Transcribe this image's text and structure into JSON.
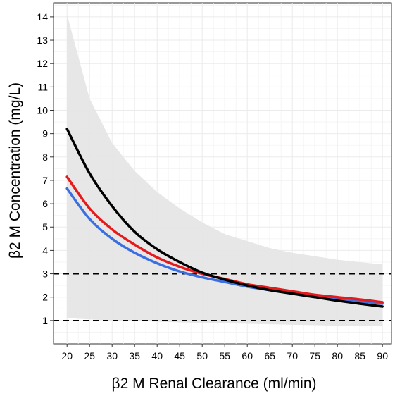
{
  "chart_data": {
    "type": "line",
    "xlabel": "β2 M Renal Clearance (ml/min)",
    "ylabel": "β2 M Concentration (mg/L)",
    "xlim": [
      17,
      92
    ],
    "ylim": [
      0,
      14.6
    ],
    "grid": true,
    "x_ticks": [
      20,
      25,
      30,
      35,
      40,
      45,
      50,
      55,
      60,
      65,
      70,
      75,
      80,
      85,
      90
    ],
    "y_ticks": [
      1,
      2,
      3,
      4,
      5,
      6,
      7,
      8,
      9,
      10,
      11,
      12,
      13,
      14
    ],
    "x": [
      20,
      25,
      30,
      35,
      40,
      45,
      50,
      55,
      60,
      65,
      70,
      75,
      80,
      85,
      90
    ],
    "band": {
      "lower": [
        1.1,
        1.05,
        1.0,
        0.98,
        0.95,
        0.92,
        0.9,
        0.88,
        0.86,
        0.84,
        0.82,
        0.8,
        0.78,
        0.76,
        0.75
      ],
      "upper": [
        14.1,
        10.5,
        8.6,
        7.4,
        6.5,
        5.8,
        5.2,
        4.7,
        4.4,
        4.1,
        3.9,
        3.75,
        3.6,
        3.5,
        3.4
      ],
      "color": "#e6e6e6"
    },
    "series": [
      {
        "color": "#000000",
        "values": [
          9.2,
          7.3,
          5.9,
          4.8,
          4.05,
          3.5,
          3.05,
          2.75,
          2.5,
          2.3,
          2.15,
          2.0,
          1.85,
          1.72,
          1.6
        ]
      },
      {
        "color": "#e41a1c",
        "values": [
          7.15,
          5.8,
          4.9,
          4.25,
          3.7,
          3.3,
          3.0,
          2.78,
          2.55,
          2.4,
          2.25,
          2.1,
          2.0,
          1.9,
          1.78
        ]
      },
      {
        "color": "#3b6fe0",
        "values": [
          6.65,
          5.35,
          4.5,
          3.9,
          3.45,
          3.1,
          2.85,
          2.65,
          2.45,
          2.3,
          2.15,
          2.0,
          1.92,
          1.82,
          1.72
        ]
      }
    ],
    "reference_lines": [
      {
        "y": 3,
        "style": "dashed",
        "color": "#000000"
      },
      {
        "y": 1,
        "style": "dashed",
        "color": "#000000"
      }
    ]
  }
}
